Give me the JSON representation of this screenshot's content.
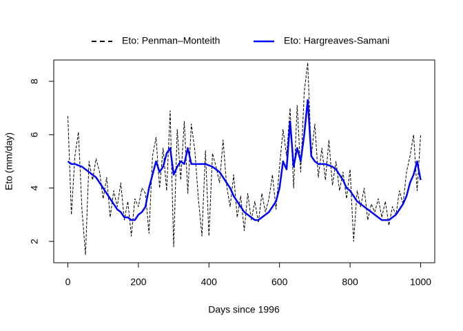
{
  "chart_data": {
    "type": "line",
    "xlabel": "Days since 1996",
    "ylabel": "Eto (mm/day)",
    "x": [
      0,
      10,
      20,
      30,
      40,
      50,
      60,
      70,
      80,
      90,
      100,
      110,
      120,
      130,
      140,
      150,
      160,
      170,
      180,
      190,
      200,
      210,
      220,
      230,
      240,
      250,
      260,
      270,
      280,
      290,
      300,
      310,
      320,
      330,
      340,
      350,
      360,
      370,
      380,
      390,
      400,
      410,
      420,
      430,
      440,
      450,
      460,
      470,
      480,
      490,
      500,
      510,
      520,
      530,
      540,
      550,
      560,
      570,
      580,
      590,
      600,
      610,
      620,
      630,
      640,
      650,
      660,
      670,
      680,
      690,
      700,
      710,
      720,
      730,
      740,
      750,
      760,
      770,
      780,
      790,
      800,
      810,
      820,
      830,
      840,
      850,
      860,
      870,
      880,
      890,
      900,
      910,
      920,
      930,
      940,
      950,
      960,
      970,
      980,
      990,
      1000
    ],
    "series": [
      {
        "name": "Eto: Penman–Monteith",
        "color": "#000000",
        "dash": true,
        "values": [
          6.7,
          3.0,
          5.2,
          6.1,
          3.2,
          1.5,
          5.0,
          4.3,
          5.1,
          4.6,
          3.6,
          4.4,
          2.9,
          3.9,
          3.3,
          4.2,
          2.8,
          3.5,
          2.2,
          3.6,
          3.3,
          4.0,
          3.8,
          2.3,
          5.2,
          5.9,
          4.0,
          5.5,
          3.9,
          6.9,
          1.8,
          6.2,
          4.3,
          6.5,
          3.8,
          6.4,
          5.4,
          3.6,
          2.2,
          5.4,
          2.2,
          5.3,
          4.8,
          4.2,
          5.8,
          4.1,
          3.3,
          4.5,
          2.9,
          3.7,
          2.4,
          3.8,
          2.8,
          3.5,
          2.7,
          3.8,
          3.1,
          3.6,
          4.5,
          3.2,
          4.8,
          6.2,
          5.2,
          7.0,
          4.0,
          7.1,
          4.6,
          7.6,
          8.7,
          5.2,
          6.4,
          4.4,
          5.5,
          4.3,
          5.8,
          4.1,
          5.0,
          3.9,
          4.6,
          3.6,
          4.7,
          2.0,
          3.9,
          3.3,
          4.0,
          2.8,
          3.4,
          3.1,
          3.6,
          2.9,
          3.5,
          2.6,
          3.3,
          3.0,
          3.9,
          3.4,
          4.6,
          5.2,
          6.0,
          3.9,
          6.0
        ]
      },
      {
        "name": "Eto: Hargreaves-Samani",
        "color": "#0000ff",
        "dash": false,
        "values": [
          5.0,
          4.9,
          4.9,
          4.85,
          4.8,
          4.7,
          4.6,
          4.5,
          4.4,
          4.2,
          4.0,
          3.8,
          3.6,
          3.4,
          3.2,
          3.1,
          2.9,
          2.9,
          2.8,
          2.8,
          3.0,
          3.1,
          3.3,
          4.0,
          4.5,
          5.0,
          4.6,
          4.8,
          5.3,
          5.5,
          4.5,
          4.8,
          5.0,
          4.9,
          5.5,
          4.9,
          4.9,
          4.9,
          4.9,
          4.9,
          4.85,
          4.8,
          4.7,
          4.6,
          4.4,
          4.2,
          4.0,
          3.7,
          3.5,
          3.3,
          3.1,
          3.0,
          2.9,
          2.8,
          2.8,
          2.9,
          3.0,
          3.1,
          3.3,
          3.5,
          4.0,
          5.0,
          4.7,
          6.5,
          4.8,
          5.5,
          5.0,
          6.0,
          7.3,
          5.2,
          5.0,
          4.9,
          4.9,
          4.9,
          4.85,
          4.8,
          4.7,
          4.5,
          4.3,
          4.0,
          3.9,
          3.7,
          3.5,
          3.4,
          3.3,
          3.2,
          3.1,
          3.0,
          2.9,
          2.8,
          2.8,
          2.8,
          2.9,
          3.0,
          3.2,
          3.4,
          3.7,
          4.2,
          4.5,
          5.0,
          4.3
        ]
      }
    ],
    "xlim": [
      -40,
      1040
    ],
    "ylim": [
      1.2,
      8.8
    ],
    "xticks": [
      0,
      200,
      400,
      600,
      800,
      1000
    ],
    "yticks": [
      2,
      4,
      6,
      8
    ]
  }
}
